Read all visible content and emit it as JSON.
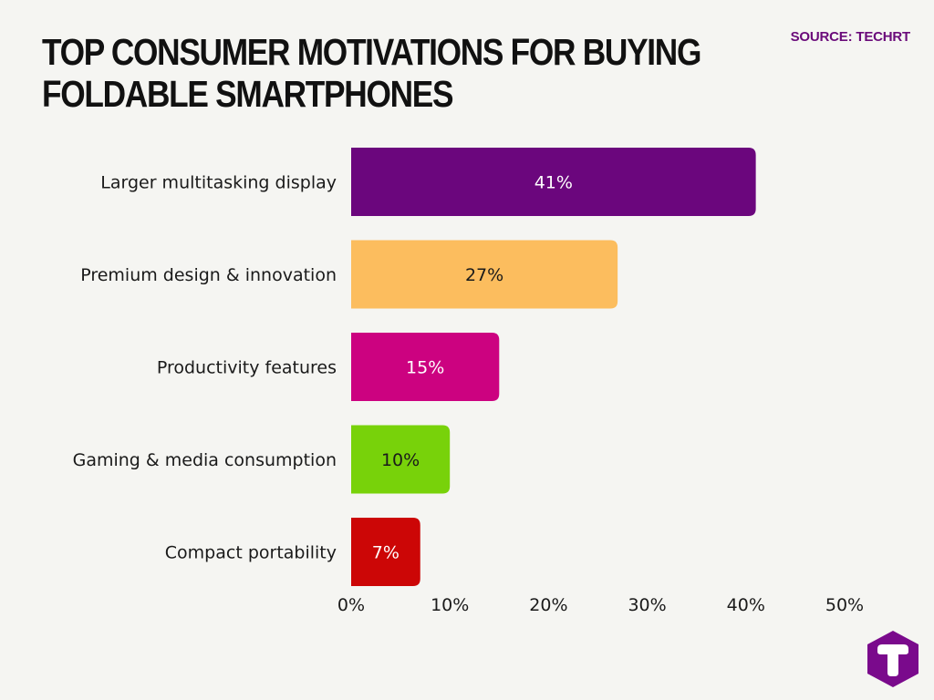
{
  "header": {
    "title_line1": "TOP CONSUMER MOTIVATIONS FOR BUYING",
    "title_line2": "FOLDABLE SMARTPHONES",
    "source": "SOURCE: TECHRT"
  },
  "chart_data": {
    "type": "bar",
    "orientation": "horizontal",
    "categories": [
      "Larger multitasking display",
      "Premium design & innovation",
      "Productivity features",
      "Gaming & media consumption",
      "Compact portability"
    ],
    "values": [
      41,
      27,
      15,
      10,
      7
    ],
    "value_labels": [
      "41%",
      "27%",
      "15%",
      "10%",
      "7%"
    ],
    "bar_colors": [
      "#6b067d",
      "#fcbd5e",
      "#cc0280",
      "#78d20a",
      "#cc0606"
    ],
    "label_colors": [
      "#ffffff",
      "#1a1a1a",
      "#ffffff",
      "#1a1a1a",
      "#ffffff"
    ],
    "xlim": [
      0,
      50
    ],
    "xticks": [
      0,
      10,
      20,
      30,
      40,
      50
    ],
    "xtick_labels": [
      "0%",
      "10%",
      "20%",
      "30%",
      "40%",
      "50%"
    ],
    "grid": false,
    "legend": "none"
  },
  "logo": {
    "icon": "techrt-logo-icon",
    "color": "#7a0a8c"
  }
}
